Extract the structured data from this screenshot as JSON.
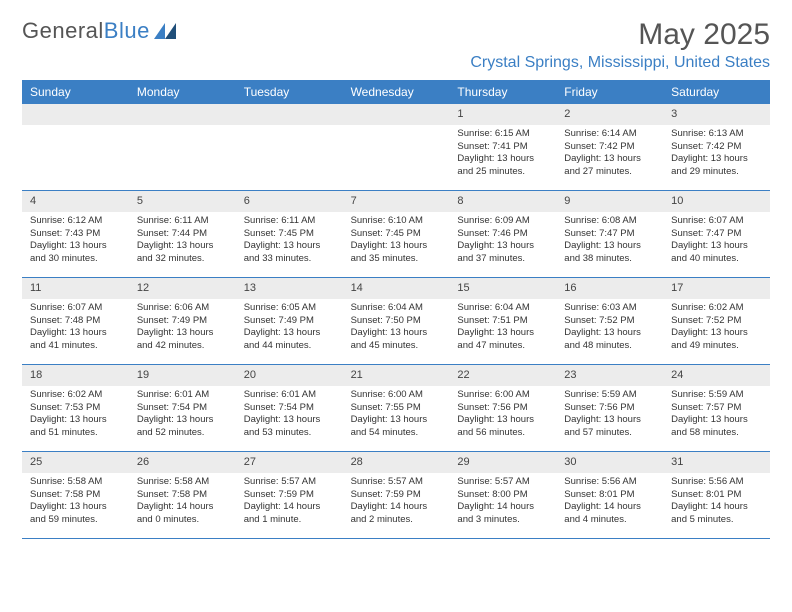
{
  "logo": {
    "text_a": "General",
    "text_b": "Blue"
  },
  "title": "May 2025",
  "location": "Crystal Springs, Mississippi, United States",
  "colors": {
    "accent": "#3b7fc4",
    "header_bg": "#3b7fc4",
    "header_text": "#ffffff",
    "daynum_bg": "#ececec",
    "text": "#333333",
    "muted": "#555555",
    "border": "#3b7fc4",
    "background": "#ffffff"
  },
  "day_names": [
    "Sunday",
    "Monday",
    "Tuesday",
    "Wednesday",
    "Thursday",
    "Friday",
    "Saturday"
  ],
  "weeks": [
    [
      {
        "day": null
      },
      {
        "day": null
      },
      {
        "day": null
      },
      {
        "day": null
      },
      {
        "day": 1,
        "sunrise": "Sunrise: 6:15 AM",
        "sunset": "Sunset: 7:41 PM",
        "daylight": "Daylight: 13 hours and 25 minutes."
      },
      {
        "day": 2,
        "sunrise": "Sunrise: 6:14 AM",
        "sunset": "Sunset: 7:42 PM",
        "daylight": "Daylight: 13 hours and 27 minutes."
      },
      {
        "day": 3,
        "sunrise": "Sunrise: 6:13 AM",
        "sunset": "Sunset: 7:42 PM",
        "daylight": "Daylight: 13 hours and 29 minutes."
      }
    ],
    [
      {
        "day": 4,
        "sunrise": "Sunrise: 6:12 AM",
        "sunset": "Sunset: 7:43 PM",
        "daylight": "Daylight: 13 hours and 30 minutes."
      },
      {
        "day": 5,
        "sunrise": "Sunrise: 6:11 AM",
        "sunset": "Sunset: 7:44 PM",
        "daylight": "Daylight: 13 hours and 32 minutes."
      },
      {
        "day": 6,
        "sunrise": "Sunrise: 6:11 AM",
        "sunset": "Sunset: 7:45 PM",
        "daylight": "Daylight: 13 hours and 33 minutes."
      },
      {
        "day": 7,
        "sunrise": "Sunrise: 6:10 AM",
        "sunset": "Sunset: 7:45 PM",
        "daylight": "Daylight: 13 hours and 35 minutes."
      },
      {
        "day": 8,
        "sunrise": "Sunrise: 6:09 AM",
        "sunset": "Sunset: 7:46 PM",
        "daylight": "Daylight: 13 hours and 37 minutes."
      },
      {
        "day": 9,
        "sunrise": "Sunrise: 6:08 AM",
        "sunset": "Sunset: 7:47 PM",
        "daylight": "Daylight: 13 hours and 38 minutes."
      },
      {
        "day": 10,
        "sunrise": "Sunrise: 6:07 AM",
        "sunset": "Sunset: 7:47 PM",
        "daylight": "Daylight: 13 hours and 40 minutes."
      }
    ],
    [
      {
        "day": 11,
        "sunrise": "Sunrise: 6:07 AM",
        "sunset": "Sunset: 7:48 PM",
        "daylight": "Daylight: 13 hours and 41 minutes."
      },
      {
        "day": 12,
        "sunrise": "Sunrise: 6:06 AM",
        "sunset": "Sunset: 7:49 PM",
        "daylight": "Daylight: 13 hours and 42 minutes."
      },
      {
        "day": 13,
        "sunrise": "Sunrise: 6:05 AM",
        "sunset": "Sunset: 7:49 PM",
        "daylight": "Daylight: 13 hours and 44 minutes."
      },
      {
        "day": 14,
        "sunrise": "Sunrise: 6:04 AM",
        "sunset": "Sunset: 7:50 PM",
        "daylight": "Daylight: 13 hours and 45 minutes."
      },
      {
        "day": 15,
        "sunrise": "Sunrise: 6:04 AM",
        "sunset": "Sunset: 7:51 PM",
        "daylight": "Daylight: 13 hours and 47 minutes."
      },
      {
        "day": 16,
        "sunrise": "Sunrise: 6:03 AM",
        "sunset": "Sunset: 7:52 PM",
        "daylight": "Daylight: 13 hours and 48 minutes."
      },
      {
        "day": 17,
        "sunrise": "Sunrise: 6:02 AM",
        "sunset": "Sunset: 7:52 PM",
        "daylight": "Daylight: 13 hours and 49 minutes."
      }
    ],
    [
      {
        "day": 18,
        "sunrise": "Sunrise: 6:02 AM",
        "sunset": "Sunset: 7:53 PM",
        "daylight": "Daylight: 13 hours and 51 minutes."
      },
      {
        "day": 19,
        "sunrise": "Sunrise: 6:01 AM",
        "sunset": "Sunset: 7:54 PM",
        "daylight": "Daylight: 13 hours and 52 minutes."
      },
      {
        "day": 20,
        "sunrise": "Sunrise: 6:01 AM",
        "sunset": "Sunset: 7:54 PM",
        "daylight": "Daylight: 13 hours and 53 minutes."
      },
      {
        "day": 21,
        "sunrise": "Sunrise: 6:00 AM",
        "sunset": "Sunset: 7:55 PM",
        "daylight": "Daylight: 13 hours and 54 minutes."
      },
      {
        "day": 22,
        "sunrise": "Sunrise: 6:00 AM",
        "sunset": "Sunset: 7:56 PM",
        "daylight": "Daylight: 13 hours and 56 minutes."
      },
      {
        "day": 23,
        "sunrise": "Sunrise: 5:59 AM",
        "sunset": "Sunset: 7:56 PM",
        "daylight": "Daylight: 13 hours and 57 minutes."
      },
      {
        "day": 24,
        "sunrise": "Sunrise: 5:59 AM",
        "sunset": "Sunset: 7:57 PM",
        "daylight": "Daylight: 13 hours and 58 minutes."
      }
    ],
    [
      {
        "day": 25,
        "sunrise": "Sunrise: 5:58 AM",
        "sunset": "Sunset: 7:58 PM",
        "daylight": "Daylight: 13 hours and 59 minutes."
      },
      {
        "day": 26,
        "sunrise": "Sunrise: 5:58 AM",
        "sunset": "Sunset: 7:58 PM",
        "daylight": "Daylight: 14 hours and 0 minutes."
      },
      {
        "day": 27,
        "sunrise": "Sunrise: 5:57 AM",
        "sunset": "Sunset: 7:59 PM",
        "daylight": "Daylight: 14 hours and 1 minute."
      },
      {
        "day": 28,
        "sunrise": "Sunrise: 5:57 AM",
        "sunset": "Sunset: 7:59 PM",
        "daylight": "Daylight: 14 hours and 2 minutes."
      },
      {
        "day": 29,
        "sunrise": "Sunrise: 5:57 AM",
        "sunset": "Sunset: 8:00 PM",
        "daylight": "Daylight: 14 hours and 3 minutes."
      },
      {
        "day": 30,
        "sunrise": "Sunrise: 5:56 AM",
        "sunset": "Sunset: 8:01 PM",
        "daylight": "Daylight: 14 hours and 4 minutes."
      },
      {
        "day": 31,
        "sunrise": "Sunrise: 5:56 AM",
        "sunset": "Sunset: 8:01 PM",
        "daylight": "Daylight: 14 hours and 5 minutes."
      }
    ]
  ]
}
